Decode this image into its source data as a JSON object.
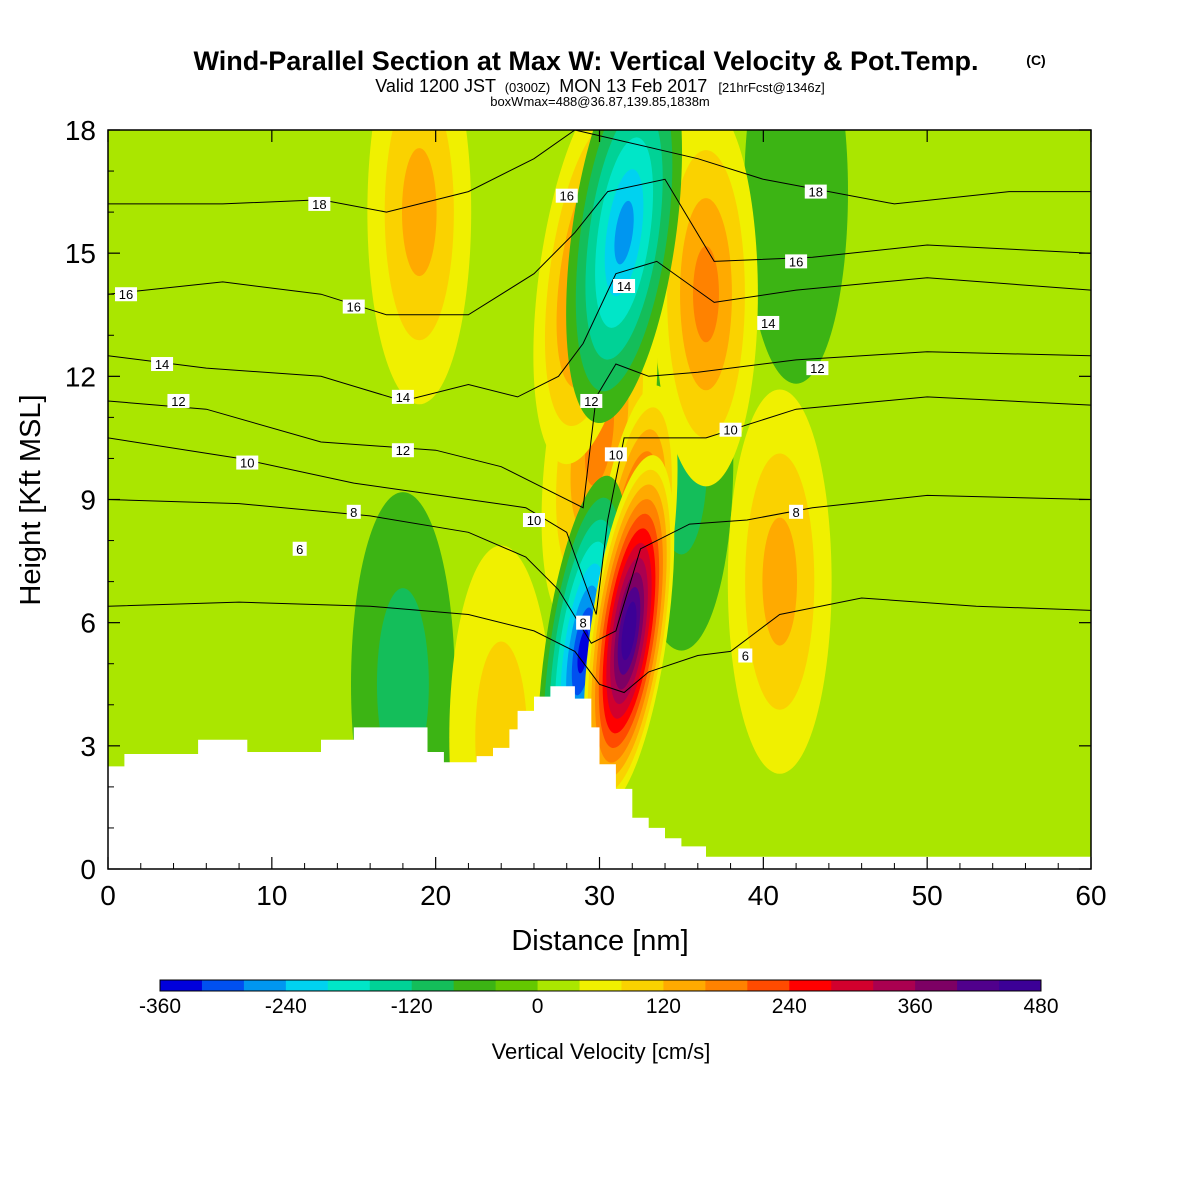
{
  "header": {
    "title": "Wind-Parallel Section at Max W: Vertical Velocity & Pot.Temp.",
    "copyright": "(C)",
    "valid_prefix": "Valid 1200 JST",
    "valid_utc": "(0300Z)",
    "valid_date": "MON 13 Feb 2017",
    "forecast": "[21hrFcst@1346z]",
    "boxinfo": "boxWmax=488@36.87,139.85,1838m"
  },
  "chart_data": {
    "type": "heatmap",
    "title": "Wind-Parallel Section at Max W: Vertical Velocity & Pot.Temp.",
    "xlabel": "Distance [nm]",
    "ylabel": "Height [Kft MSL]",
    "xlim": [
      0,
      60
    ],
    "ylim": [
      0,
      18
    ],
    "xticks": [
      "0",
      "10",
      "20",
      "30",
      "40",
      "50",
      "60"
    ],
    "yticks": [
      "0",
      "3",
      "6",
      "9",
      "12",
      "15",
      "18"
    ],
    "x_tick_values": [
      0,
      10,
      20,
      30,
      40,
      50,
      60
    ],
    "y_tick_values": [
      0,
      3,
      6,
      9,
      12,
      15,
      18
    ],
    "colorbar": {
      "label": "Vertical Velocity [cm/s]",
      "min": -360,
      "max": 480,
      "step": 40,
      "tick_labels": [
        "-360",
        "-240",
        "-120",
        "0",
        "120",
        "240",
        "360",
        "480"
      ],
      "tick_values": [
        -360,
        -240,
        -120,
        0,
        120,
        240,
        360,
        480
      ],
      "colors": [
        "#0000dc",
        "#0050f0",
        "#0096f0",
        "#00d2f0",
        "#00e6c8",
        "#00d296",
        "#14be5a",
        "#3cb414",
        "#64c800",
        "#aae600",
        "#f0f000",
        "#fad200",
        "#ffaa00",
        "#ff8200",
        "#ff4b00",
        "#ff0000",
        "#d2002d",
        "#aa0050",
        "#7d0064",
        "#50008c",
        "#3c0096"
      ]
    },
    "terrain_profile": [
      [
        0,
        2.5
      ],
      [
        1,
        2.8
      ],
      [
        5.5,
        3.15
      ],
      [
        8.5,
        2.85
      ],
      [
        13,
        3.15
      ],
      [
        15,
        3.45
      ],
      [
        19.5,
        2.85
      ],
      [
        20.5,
        2.6
      ],
      [
        22.5,
        2.75
      ],
      [
        23.5,
        2.95
      ],
      [
        24.5,
        3.4
      ],
      [
        25,
        3.85
      ],
      [
        26,
        4.2
      ],
      [
        27,
        4.45
      ],
      [
        28.5,
        4.15
      ],
      [
        29.5,
        3.45
      ],
      [
        30,
        2.55
      ],
      [
        31,
        1.95
      ],
      [
        32,
        1.25
      ],
      [
        33,
        1.0
      ],
      [
        34,
        0.75
      ],
      [
        35,
        0.55
      ],
      [
        36.5,
        0.3
      ],
      [
        60,
        0.3
      ]
    ],
    "vertical_velocity_features": [
      {
        "x": 31.8,
        "y": 5.8,
        "value": 488
      },
      {
        "x": 32.0,
        "y": 7.5,
        "value": 300
      },
      {
        "x": 29.0,
        "y": 5.3,
        "value": -330
      },
      {
        "x": 31.5,
        "y": 15.5,
        "value": -230
      },
      {
        "x": 29.5,
        "y": 14.5,
        "value": 200
      },
      {
        "x": 36.5,
        "y": 14.0,
        "value": 140
      },
      {
        "x": 19.0,
        "y": 16.0,
        "value": 100
      },
      {
        "x": 41.0,
        "y": 7.0,
        "value": 100
      },
      {
        "x": 24.0,
        "y": 3.2,
        "value": 90
      },
      {
        "x": 18.0,
        "y": 4.5,
        "value": -60
      },
      {
        "x": 42.0,
        "y": 16.5,
        "value": -50
      },
      {
        "x": 30.0,
        "y": 10.5,
        "value": 160
      },
      {
        "x": 35.0,
        "y": 10.0,
        "value": -60
      }
    ],
    "theta_contour_levels": [
      {
        "value": 6,
        "label": "6",
        "points": [
          [
            0,
            6.4
          ],
          [
            8,
            6.5
          ],
          [
            16,
            6.4
          ],
          [
            22,
            6.2
          ],
          [
            26,
            5.8
          ],
          [
            28.5,
            5.3
          ],
          [
            30,
            4.5
          ],
          [
            31.5,
            4.3
          ],
          [
            33,
            4.8
          ],
          [
            36,
            5.2
          ],
          [
            38,
            5.3
          ],
          [
            41,
            6.2
          ],
          [
            46,
            6.6
          ],
          [
            53,
            6.4
          ],
          [
            60,
            6.3
          ]
        ],
        "labels": [
          [
            11.7,
            7.8
          ],
          [
            38.9,
            5.2
          ]
        ]
      },
      {
        "value": 8,
        "label": "8",
        "points": [
          [
            0,
            9.0
          ],
          [
            8,
            8.9
          ],
          [
            16,
            8.6
          ],
          [
            22,
            8.2
          ],
          [
            25.5,
            7.6
          ],
          [
            27.5,
            6.8
          ],
          [
            29.5,
            5.5
          ],
          [
            31,
            5.8
          ],
          [
            32.5,
            7.8
          ],
          [
            35.5,
            8.4
          ],
          [
            39,
            8.5
          ],
          [
            43,
            8.8
          ],
          [
            50,
            9.1
          ],
          [
            60,
            9.0
          ]
        ],
        "labels": [
          [
            15,
            8.7
          ],
          [
            29,
            6.0
          ],
          [
            42,
            8.7
          ]
        ]
      },
      {
        "value": 10,
        "label": "10",
        "points": [
          [
            0,
            10.5
          ],
          [
            8,
            10.0
          ],
          [
            15,
            9.4
          ],
          [
            22,
            9.0
          ],
          [
            25.5,
            8.8
          ],
          [
            28,
            8.2
          ],
          [
            29.8,
            6.2
          ],
          [
            30.5,
            8.5
          ],
          [
            31.5,
            10.5
          ],
          [
            33.5,
            10.5
          ],
          [
            36.5,
            10.5
          ],
          [
            42,
            11.2
          ],
          [
            50,
            11.5
          ],
          [
            60,
            11.3
          ]
        ],
        "labels": [
          [
            8.5,
            9.9
          ],
          [
            26,
            8.5
          ],
          [
            31,
            10.1
          ],
          [
            38,
            10.7
          ]
        ]
      },
      {
        "value": 12,
        "label": "12",
        "points": [
          [
            0,
            11.4
          ],
          [
            6,
            11.2
          ],
          [
            13,
            10.4
          ],
          [
            20,
            10.2
          ],
          [
            24,
            9.8
          ],
          [
            27,
            9.2
          ],
          [
            29,
            8.8
          ],
          [
            29.8,
            11.5
          ],
          [
            31,
            12.3
          ],
          [
            33,
            12.0
          ],
          [
            36,
            12.1
          ],
          [
            42,
            12.4
          ],
          [
            50,
            12.6
          ],
          [
            60,
            12.5
          ]
        ],
        "labels": [
          [
            4.3,
            11.4
          ],
          [
            18,
            10.2
          ],
          [
            29.5,
            11.4
          ],
          [
            43.3,
            12.2
          ]
        ]
      },
      {
        "value": 14,
        "label": "14",
        "points": [
          [
            0,
            12.5
          ],
          [
            6,
            12.2
          ],
          [
            13,
            12.0
          ],
          [
            18,
            11.4
          ],
          [
            22,
            11.8
          ],
          [
            25,
            11.5
          ],
          [
            27.5,
            12.0
          ],
          [
            29,
            12.8
          ],
          [
            31,
            14.5
          ],
          [
            33.5,
            14.8
          ],
          [
            37,
            13.8
          ],
          [
            42,
            14.1
          ],
          [
            50,
            14.4
          ],
          [
            60,
            14.1
          ]
        ],
        "labels": [
          [
            3.3,
            12.3
          ],
          [
            18,
            11.5
          ],
          [
            31.5,
            14.2
          ],
          [
            40.3,
            13.3
          ]
        ]
      },
      {
        "value": 16,
        "label": "16",
        "points": [
          [
            0,
            14.0
          ],
          [
            7,
            14.3
          ],
          [
            13,
            14.0
          ],
          [
            17,
            13.5
          ],
          [
            22,
            13.5
          ],
          [
            26,
            14.5
          ],
          [
            28.5,
            15.5
          ],
          [
            30.5,
            16.5
          ],
          [
            34,
            16.8
          ],
          [
            37,
            14.8
          ],
          [
            43,
            14.9
          ],
          [
            50,
            15.2
          ],
          [
            60,
            15.0
          ]
        ],
        "labels": [
          [
            1.1,
            14.0
          ],
          [
            15,
            13.7
          ],
          [
            28,
            16.4
          ],
          [
            42,
            14.8
          ]
        ]
      },
      {
        "value": 18,
        "label": "18",
        "points": [
          [
            0,
            16.2
          ],
          [
            7,
            16.2
          ],
          [
            13,
            16.3
          ],
          [
            17,
            16.0
          ],
          [
            22,
            16.5
          ],
          [
            26,
            17.3
          ],
          [
            28.5,
            18.0
          ],
          [
            36,
            17.3
          ],
          [
            40,
            16.8
          ],
          [
            48,
            16.2
          ],
          [
            55,
            16.5
          ],
          [
            60,
            16.5
          ]
        ],
        "labels": [
          [
            12.9,
            16.2
          ],
          [
            43.2,
            16.5
          ]
        ]
      }
    ]
  }
}
